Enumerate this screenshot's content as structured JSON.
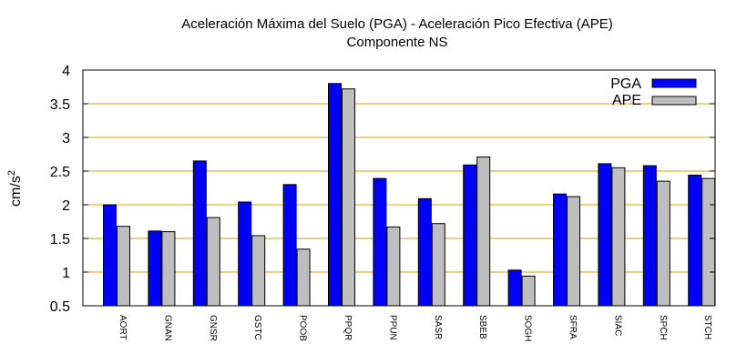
{
  "chart_data": {
    "type": "bar",
    "title": "Aceleración Máxima del Suelo (PGA) -  Aceleración Pico Efectiva (APE)",
    "subtitle": "Componente NS",
    "xlabel": "",
    "ylabel": "cm/s",
    "ylabel_sup": "2",
    "ylim": [
      0.5,
      4
    ],
    "yticks": [
      "0.5",
      "1",
      "1.5",
      "2",
      "2.5",
      "3",
      "3.5",
      "4"
    ],
    "grid": true,
    "legend_position": "top-right",
    "categories": [
      "AORT",
      "GNAN",
      "GNSR",
      "GSTC",
      "POOB",
      "PPQR",
      "PPUN",
      "SASR",
      "SBEB",
      "SOGH",
      "SFRA",
      "SIAC",
      "SPCH",
      "STCH"
    ],
    "series": [
      {
        "name": "PGA",
        "color": "#0000ff",
        "values": [
          2.0,
          1.61,
          2.65,
          2.04,
          2.3,
          3.8,
          2.39,
          2.09,
          2.59,
          1.03,
          2.16,
          2.61,
          2.58,
          2.44
        ]
      },
      {
        "name": "APE",
        "color": "#bebebe",
        "values": [
          1.68,
          1.6,
          1.81,
          1.54,
          1.34,
          3.72,
          1.67,
          1.72,
          2.71,
          0.94,
          2.12,
          2.55,
          2.35,
          2.39
        ]
      }
    ],
    "colors": {
      "grid": "#d9a400",
      "axis": "#000000"
    }
  }
}
